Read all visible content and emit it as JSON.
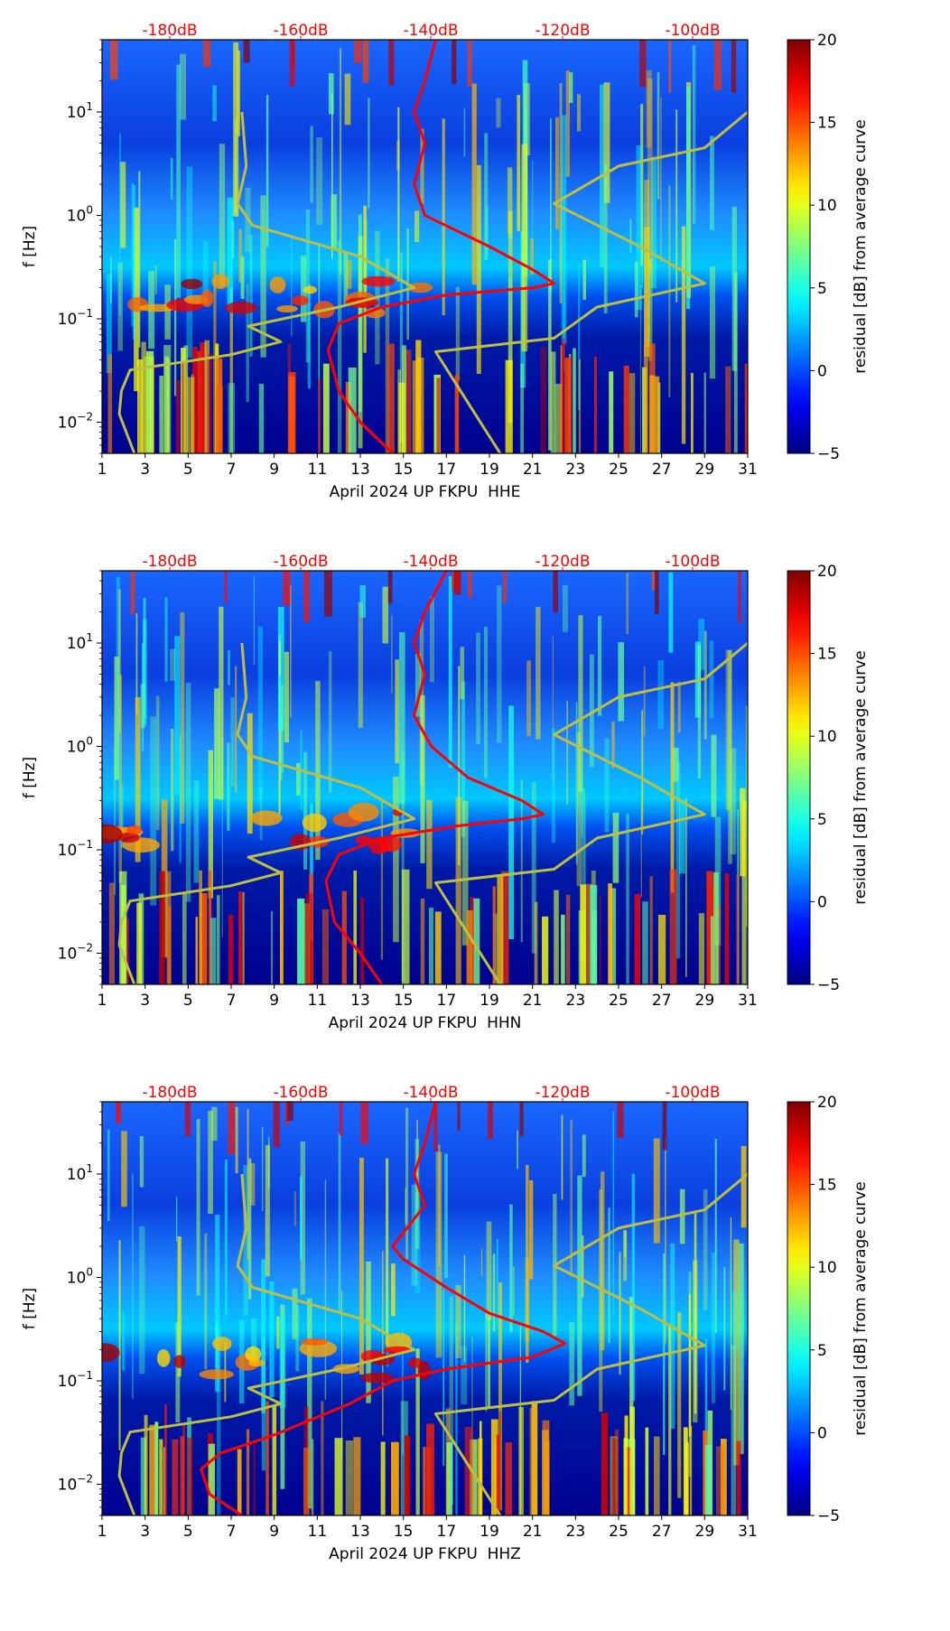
{
  "chart_data": [
    {
      "type": "heatmap",
      "xlabel": "April 2024 UP FKPU  HHE",
      "ylabel": "f [Hz]",
      "x_ticks": [
        "1",
        "3",
        "5",
        "7",
        "9",
        "11",
        "13",
        "15",
        "17",
        "19",
        "21",
        "23",
        "25",
        "27",
        "29",
        "31"
      ],
      "y_ticks": [
        "10−2",
        "10−1",
        "100",
        "101"
      ],
      "xlim": [
        1,
        31
      ],
      "ylim_hz": [
        0.005,
        50
      ],
      "y_scale": "log",
      "top_axis_ticks": [
        "-180dB",
        "-160dB",
        "-140dB",
        "-120dB",
        "-100dB"
      ],
      "top_axis_color": "#ff0000",
      "colorbar": {
        "label": "residual [dB] from average curve",
        "ticks": [
          "20",
          "15",
          "10",
          "5",
          "0",
          "−5"
        ],
        "range": [
          -5,
          20
        ],
        "colormap": "jet"
      },
      "series": [
        {
          "color": "#ff0000",
          "points": [
            [
              14.5,
              0.005
            ],
            [
              13.0,
              0.01
            ],
            [
              12.0,
              0.02
            ],
            [
              11.5,
              0.05
            ],
            [
              12.0,
              0.09
            ],
            [
              14.0,
              0.13
            ],
            [
              17.0,
              0.17
            ],
            [
              21.0,
              0.2
            ],
            [
              22.0,
              0.22
            ],
            [
              21.0,
              0.3
            ],
            [
              19.0,
              0.5
            ],
            [
              16.0,
              1.0
            ],
            [
              15.5,
              2.0
            ],
            [
              16.0,
              5.0
            ],
            [
              15.5,
              10
            ],
            [
              16.0,
              20
            ],
            [
              16.5,
              50
            ]
          ]
        },
        {
          "color": "#bfbf3f",
          "points": [
            [
              2.5,
              0.005
            ],
            [
              1.8,
              0.012
            ],
            [
              1.9,
              0.02
            ],
            [
              2.3,
              0.032
            ],
            [
              7.0,
              0.045
            ],
            [
              9.3,
              0.06
            ],
            [
              7.8,
              0.085
            ],
            [
              12.0,
              0.13
            ],
            [
              15.5,
              0.2
            ],
            [
              13.0,
              0.4
            ],
            [
              8.0,
              0.8
            ],
            [
              7.3,
              1.3
            ],
            [
              7.7,
              3.0
            ],
            [
              7.5,
              10
            ]
          ]
        },
        {
          "color": "#bfbf3f",
          "points": [
            [
              19.5,
              0.005
            ],
            [
              16.5,
              0.048
            ],
            [
              22.0,
              0.065
            ],
            [
              24.0,
              0.13
            ],
            [
              29.0,
              0.22
            ],
            [
              26.0,
              0.5
            ],
            [
              22.0,
              1.3
            ],
            [
              25.0,
              3.0
            ],
            [
              29.0,
              4.5
            ],
            [
              31.0,
              10
            ]
          ]
        }
      ]
    },
    {
      "type": "heatmap",
      "xlabel": "April 2024 UP FKPU  HHN",
      "ylabel": "f [Hz]",
      "x_ticks": [
        "1",
        "3",
        "5",
        "7",
        "9",
        "11",
        "13",
        "15",
        "17",
        "19",
        "21",
        "23",
        "25",
        "27",
        "29",
        "31"
      ],
      "y_ticks": [
        "10−2",
        "10−1",
        "100",
        "101"
      ],
      "xlim": [
        1,
        31
      ],
      "ylim_hz": [
        0.005,
        50
      ],
      "y_scale": "log",
      "top_axis_ticks": [
        "-180dB",
        "-160dB",
        "-140dB",
        "-120dB",
        "-100dB"
      ],
      "top_axis_color": "#ff0000",
      "colorbar": {
        "label": "residual [dB] from average curve",
        "ticks": [
          "20",
          "15",
          "10",
          "5",
          "0",
          "−5"
        ],
        "range": [
          -5,
          20
        ],
        "colormap": "jet"
      },
      "series": [
        {
          "color": "#ff0000",
          "points": [
            [
              14.0,
              0.005
            ],
            [
              13.0,
              0.01
            ],
            [
              11.8,
              0.02
            ],
            [
              11.4,
              0.05
            ],
            [
              12.0,
              0.09
            ],
            [
              14.0,
              0.13
            ],
            [
              17.5,
              0.17
            ],
            [
              20.5,
              0.2
            ],
            [
              21.5,
              0.22
            ],
            [
              20.5,
              0.3
            ],
            [
              18.0,
              0.5
            ],
            [
              16.3,
              1.0
            ],
            [
              15.5,
              2.0
            ],
            [
              16.0,
              5.0
            ],
            [
              15.5,
              10
            ],
            [
              16.0,
              20
            ],
            [
              17.0,
              50
            ]
          ]
        },
        {
          "color": "#bfbf3f",
          "points": [
            [
              2.5,
              0.005
            ],
            [
              1.8,
              0.012
            ],
            [
              1.9,
              0.02
            ],
            [
              2.3,
              0.032
            ],
            [
              7.0,
              0.045
            ],
            [
              9.3,
              0.06
            ],
            [
              7.8,
              0.085
            ],
            [
              12.0,
              0.13
            ],
            [
              15.5,
              0.2
            ],
            [
              13.0,
              0.4
            ],
            [
              8.0,
              0.8
            ],
            [
              7.3,
              1.3
            ],
            [
              7.7,
              3.0
            ],
            [
              7.5,
              10
            ]
          ]
        },
        {
          "color": "#bfbf3f",
          "points": [
            [
              19.5,
              0.005
            ],
            [
              16.5,
              0.048
            ],
            [
              22.0,
              0.065
            ],
            [
              24.0,
              0.13
            ],
            [
              29.0,
              0.22
            ],
            [
              26.0,
              0.5
            ],
            [
              22.0,
              1.3
            ],
            [
              25.0,
              3.0
            ],
            [
              29.0,
              4.5
            ],
            [
              31.0,
              10
            ]
          ]
        }
      ]
    },
    {
      "type": "heatmap",
      "xlabel": "April 2024 UP FKPU  HHZ",
      "ylabel": "f [Hz]",
      "x_ticks": [
        "1",
        "3",
        "5",
        "7",
        "9",
        "11",
        "13",
        "15",
        "17",
        "19",
        "21",
        "23",
        "25",
        "27",
        "29",
        "31"
      ],
      "y_ticks": [
        "10−2",
        "10−1",
        "100",
        "101"
      ],
      "xlim": [
        1,
        31
      ],
      "ylim_hz": [
        0.005,
        50
      ],
      "y_scale": "log",
      "top_axis_ticks": [
        "-180dB",
        "-160dB",
        "-140dB",
        "-120dB",
        "-100dB"
      ],
      "top_axis_color": "#ff0000",
      "colorbar": {
        "label": "residual [dB] from average curve",
        "ticks": [
          "20",
          "15",
          "10",
          "5",
          "0",
          "−5"
        ],
        "range": [
          -5,
          20
        ],
        "colormap": "jet"
      },
      "series": [
        {
          "color": "#ff0000",
          "points": [
            [
              7.5,
              0.005
            ],
            [
              6.0,
              0.008
            ],
            [
              5.6,
              0.014
            ],
            [
              6.5,
              0.02
            ],
            [
              9.0,
              0.03
            ],
            [
              12.5,
              0.06
            ],
            [
              14.5,
              0.1
            ],
            [
              17.0,
              0.13
            ],
            [
              21.0,
              0.17
            ],
            [
              22.5,
              0.23
            ],
            [
              21.5,
              0.3
            ],
            [
              19.0,
              0.45
            ],
            [
              17.0,
              0.8
            ],
            [
              15.0,
              1.5
            ],
            [
              14.5,
              2.0
            ],
            [
              16.0,
              5.0
            ],
            [
              15.5,
              10
            ],
            [
              16.0,
              20
            ],
            [
              16.5,
              50
            ]
          ]
        },
        {
          "color": "#bfbf3f",
          "points": [
            [
              2.5,
              0.005
            ],
            [
              1.8,
              0.012
            ],
            [
              1.9,
              0.02
            ],
            [
              2.3,
              0.032
            ],
            [
              7.0,
              0.045
            ],
            [
              9.3,
              0.06
            ],
            [
              7.8,
              0.085
            ],
            [
              12.0,
              0.13
            ],
            [
              15.5,
              0.2
            ],
            [
              13.0,
              0.4
            ],
            [
              8.0,
              0.8
            ],
            [
              7.3,
              1.3
            ],
            [
              7.7,
              3.0
            ],
            [
              7.5,
              10
            ]
          ]
        },
        {
          "color": "#bfbf3f",
          "points": [
            [
              19.5,
              0.005
            ],
            [
              16.5,
              0.048
            ],
            [
              22.0,
              0.065
            ],
            [
              24.0,
              0.13
            ],
            [
              29.0,
              0.22
            ],
            [
              26.0,
              0.5
            ],
            [
              22.0,
              1.3
            ],
            [
              25.0,
              3.0
            ],
            [
              29.0,
              4.5
            ],
            [
              31.0,
              10
            ]
          ]
        }
      ]
    }
  ]
}
